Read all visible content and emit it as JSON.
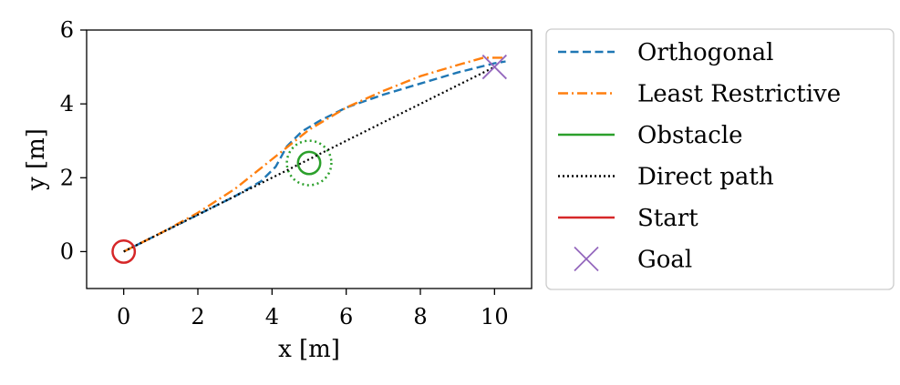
{
  "chart_data": {
    "type": "line",
    "title": "",
    "xlabel": "x [m]",
    "ylabel": "y [m]",
    "xlim": [
      -1,
      11
    ],
    "ylim": [
      -1,
      6
    ],
    "xticks": [
      0,
      2,
      4,
      6,
      8,
      10
    ],
    "yticks": [
      0,
      2,
      4,
      6
    ],
    "grid": false,
    "legend_position": "outside-right",
    "series": [
      {
        "name": "Orthogonal",
        "key": "orthogonal",
        "color": "#1f77b4",
        "style": "dashed",
        "x": [
          0,
          1,
          2,
          3,
          3.7,
          4.1,
          4.4,
          4.8,
          5.3,
          6,
          7,
          8,
          9,
          10,
          10.3
        ],
        "y": [
          0,
          0.5,
          1.0,
          1.5,
          1.9,
          2.3,
          2.85,
          3.25,
          3.55,
          3.9,
          4.25,
          4.55,
          4.85,
          5.1,
          5.15
        ]
      },
      {
        "name": "Least Restrictive",
        "key": "least_restrictive",
        "color": "#ff7f0e",
        "style": "dashdot",
        "x": [
          0,
          1,
          2,
          3,
          4,
          5,
          6,
          7,
          8,
          9,
          9.7,
          10.3
        ],
        "y": [
          0,
          0.5,
          1.05,
          1.7,
          2.5,
          3.3,
          3.9,
          4.35,
          4.75,
          5.05,
          5.25,
          5.25
        ]
      },
      {
        "name": "Direct path",
        "key": "direct_path",
        "color": "#000000",
        "style": "dotted",
        "x": [
          0,
          10
        ],
        "y": [
          0,
          5
        ]
      }
    ],
    "obstacle": {
      "name": "Obstacle",
      "color": "#2ca02c",
      "center": [
        5,
        2.4
      ],
      "radius": 0.3,
      "safety_radius": 0.6
    },
    "start": {
      "name": "Start",
      "color": "#d62728",
      "x": 0,
      "y": 0,
      "radius": 0.3
    },
    "goal": {
      "name": "Goal",
      "color": "#9467bd",
      "x": 10,
      "y": 5
    },
    "legend": [
      {
        "label": "Orthogonal",
        "color": "#1f77b4",
        "style": "dashed"
      },
      {
        "label": "Least Restrictive",
        "color": "#ff7f0e",
        "style": "dashdot"
      },
      {
        "label": "Obstacle",
        "color": "#2ca02c",
        "style": "solid"
      },
      {
        "label": "Direct path",
        "color": "#000000",
        "style": "dotted"
      },
      {
        "label": "Start",
        "color": "#d62728",
        "style": "solid"
      },
      {
        "label": "Goal",
        "color": "#9467bd",
        "style": "x-marker"
      }
    ]
  }
}
